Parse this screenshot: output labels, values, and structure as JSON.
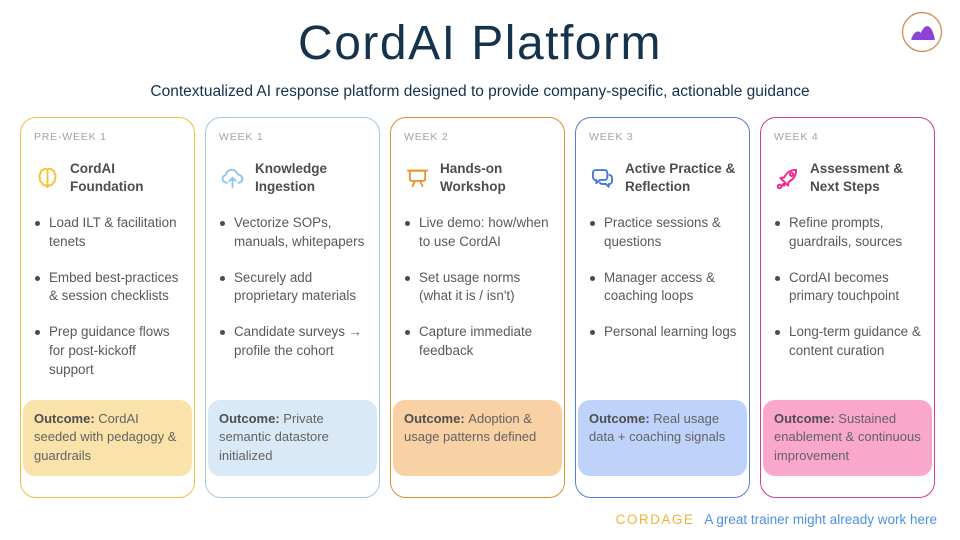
{
  "slide": {
    "title": "CordAI Platform",
    "subtitle": "Contextualized AI response platform designed to provide company-specific, actionable guidance",
    "title_color": "#16334D",
    "logo": {
      "icon": "mountain-logo-icon",
      "ring_color": "#C9935B",
      "mountain_color": "#8B44D7"
    }
  },
  "columns": [
    {
      "week": "PRE-WEEK 1",
      "title": "CordAI Foundation",
      "icon": "brain-icon",
      "border_color": "#EFC044",
      "icon_color": "#F5C437",
      "outcome_bg": "#FAE3AA",
      "bullets": [
        "Load ILT & facilitation tenets",
        "Embed best-practices & session checklists",
        "Prep guidance flows for post-kickoff support"
      ],
      "outcome_label": "Outcome:",
      "outcome": "CordAI seeded with pedagogy & guardrails"
    },
    {
      "week": "WEEK 1",
      "title": "Knowledge Ingestion",
      "icon": "cloud-upload-icon",
      "border_color": "#A5C9E1",
      "icon_color": "#8FC6EA",
      "outcome_bg": "#D9EAF6",
      "bullets": [
        "Vectorize SOPs, manuals, whitepapers",
        "Securely add proprietary materials",
        "Candidate surveys → profile the cohort"
      ],
      "outcome_label": "Outcome:",
      "outcome": "Private semantic datastore initialized"
    },
    {
      "week": "WEEK 2",
      "title": "Hands-on Workshop",
      "icon": "presentation-board-icon",
      "border_color": "#DE9032",
      "icon_color": "#ED9434",
      "outcome_bg": "#F8D1A5",
      "bullets": [
        "Live demo: how/when to use CordAI",
        "Set usage norms (what it is / isn't)",
        "Capture immediate feedback"
      ],
      "outcome_label": "Outcome:",
      "outcome": "Adoption & usage patterns defined"
    },
    {
      "week": "WEEK 3",
      "title": "Active Practice & Reflection",
      "icon": "chat-bubbles-icon",
      "border_color": "#5380D6",
      "icon_color": "#4679D9",
      "outcome_bg": "#BFD2F9",
      "bullets": [
        "Practice sessions & questions",
        "Manager access & coaching loops",
        "Personal learning logs"
      ],
      "outcome_label": "Outcome:",
      "outcome": "Real usage data + coaching signals"
    },
    {
      "week": "WEEK 4",
      "title": "Assessment & Next Steps",
      "icon": "rocket-icon",
      "border_color": "#D63C92",
      "icon_color": "#F2258C",
      "outcome_bg": "#F9A8CC",
      "bullets": [
        "Refine prompts, guardrails, sources",
        "CordAI becomes primary touchpoint",
        "Long-term guidance & content curation"
      ],
      "outcome_label": "Outcome:",
      "outcome": "Sustained enablement & continuous improvement"
    }
  ],
  "footer": {
    "brand": "CORDAGE",
    "brand_color": "#ECB537",
    "tagline": "A great trainer might already work here",
    "tagline_color": "#4C8FE8"
  }
}
